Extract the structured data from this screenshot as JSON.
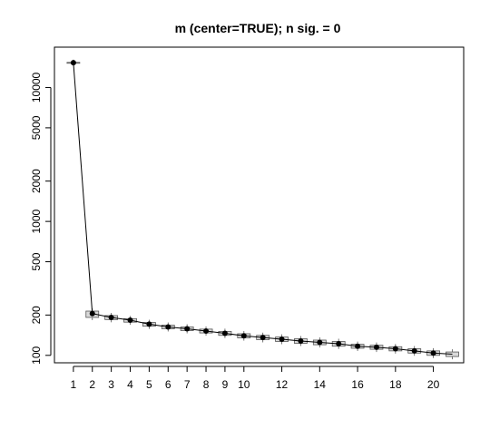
{
  "chart_data": {
    "type": "line",
    "title": "m (center=TRUE); n sig. = 0",
    "xlabel": "",
    "ylabel": "",
    "log_y": true,
    "ylim": [
      88,
      20000
    ],
    "xlim": [
      0,
      21.6
    ],
    "x_ticks": [
      1,
      2,
      3,
      4,
      5,
      6,
      7,
      8,
      9,
      10,
      12,
      14,
      16,
      18,
      20
    ],
    "y_ticks": [
      100,
      200,
      500,
      1000,
      2000,
      5000,
      10000
    ],
    "x": [
      1,
      2,
      3,
      4,
      5,
      6,
      7,
      8,
      9,
      10,
      11,
      12,
      13,
      14,
      15,
      16,
      17,
      18,
      19,
      20,
      21
    ],
    "values": [
      15300,
      205,
      192,
      183,
      171,
      163,
      158,
      152,
      146,
      140,
      136,
      132,
      128,
      125,
      122,
      117,
      115,
      112,
      108,
      104,
      102
    ],
    "ranges": [
      [
        15200,
        15400
      ],
      [
        192,
        214
      ],
      [
        185,
        198
      ],
      [
        177,
        188
      ],
      [
        165,
        176
      ],
      [
        158,
        168
      ],
      [
        153,
        163
      ],
      [
        147,
        157
      ],
      [
        141,
        151
      ],
      [
        135,
        145
      ],
      [
        131,
        141
      ],
      [
        127,
        137
      ],
      [
        123,
        133
      ],
      [
        120,
        130
      ],
      [
        117,
        127
      ],
      [
        113,
        121
      ],
      [
        111,
        119
      ],
      [
        108,
        116
      ],
      [
        104,
        112
      ],
      [
        100,
        108
      ],
      [
        98,
        106
      ]
    ],
    "grid": false
  }
}
